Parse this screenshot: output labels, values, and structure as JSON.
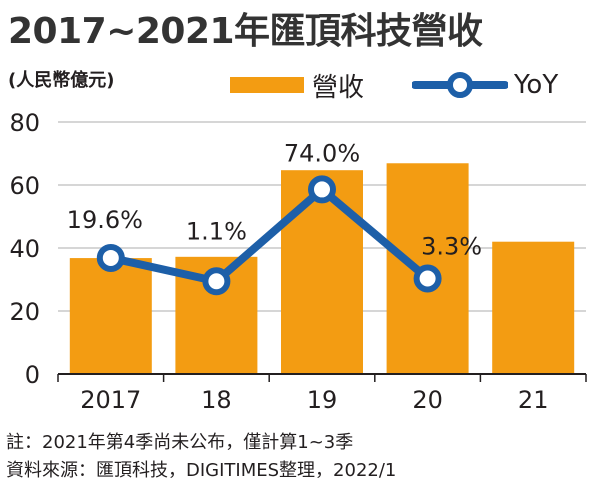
{
  "title": "2017~2021年匯頂科技營收",
  "unit": "(人民幣億元)",
  "colors": {
    "bar": "#f39c12",
    "line": "#1d5fa8",
    "grid": "#c8c8c8",
    "axis": "#231f20"
  },
  "chart_data": {
    "type": "bar",
    "categories": [
      "2017",
      "18",
      "19",
      "20",
      "21"
    ],
    "series": [
      {
        "name": "營收",
        "type": "bar",
        "values": [
          36.8,
          37.2,
          64.7,
          66.9,
          42.0
        ]
      },
      {
        "name": "YoY",
        "type": "line",
        "values": [
          19.6,
          1.1,
          74.0,
          3.3,
          null
        ],
        "labels": [
          "19.6%",
          "1.1%",
          "74.0%",
          "3.3%",
          ""
        ]
      }
    ],
    "yticks": [
      0,
      20,
      40,
      60,
      80
    ],
    "ylim": [
      0,
      80
    ],
    "grid": true,
    "legend": "top-right"
  },
  "notes": [
    "註：2021年第4季尚未公布，僅計算1~3季",
    "資料來源：匯頂科技，DIGITIMES整理，2022/1"
  ]
}
